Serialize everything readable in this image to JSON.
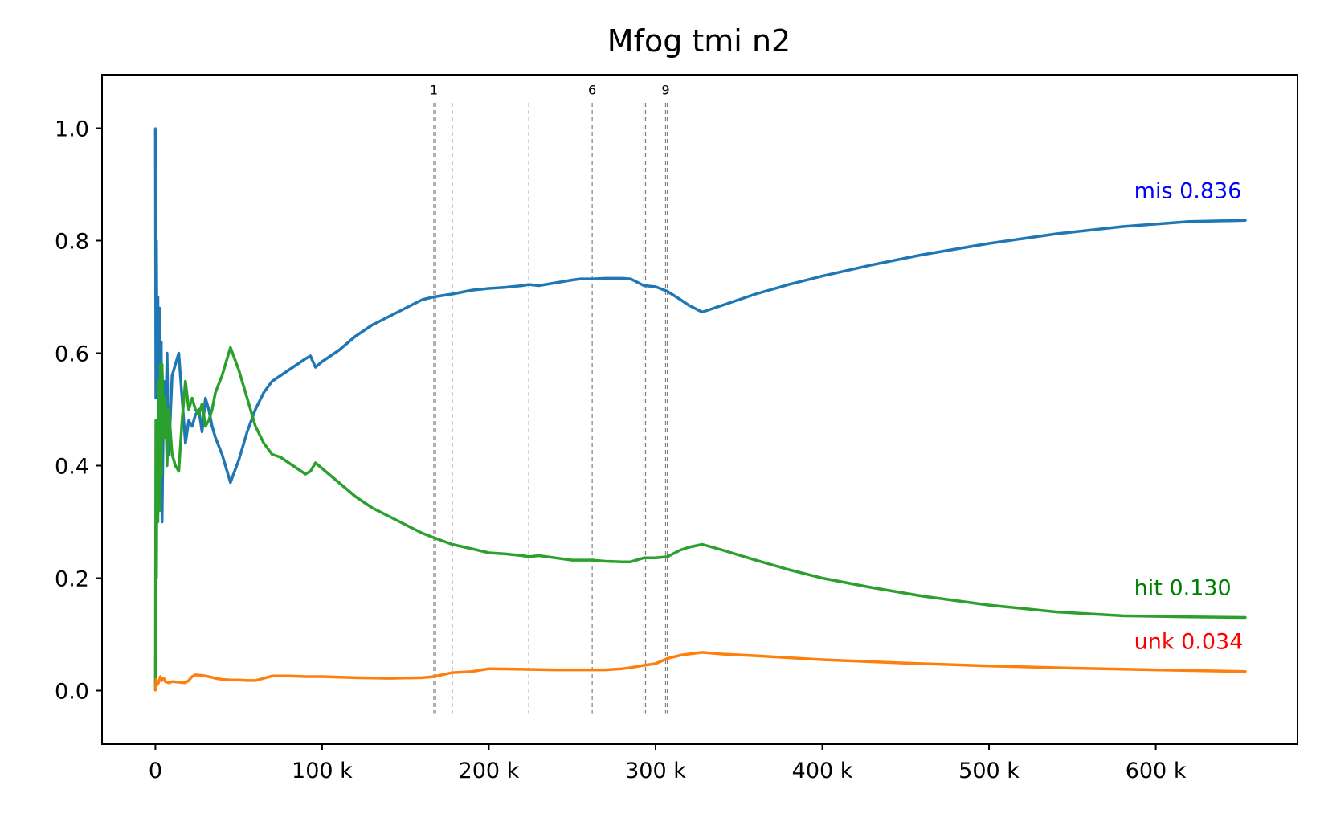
{
  "chart_data": {
    "type": "line",
    "title": "Mfog tmi n2",
    "xlabel": "",
    "ylabel": "",
    "xlim": [
      -32000,
      685000
    ],
    "ylim": [
      -0.095,
      1.095
    ],
    "xticks": [
      {
        "value": 0,
        "label": "0"
      },
      {
        "value": 100000,
        "label": "100 k"
      },
      {
        "value": 200000,
        "label": "200 k"
      },
      {
        "value": 300000,
        "label": "300 k"
      },
      {
        "value": 400000,
        "label": "400 k"
      },
      {
        "value": 500000,
        "label": "500 k"
      },
      {
        "value": 600000,
        "label": "600 k"
      }
    ],
    "yticks": [
      {
        "value": 0.0,
        "label": "0.0"
      },
      {
        "value": 0.2,
        "label": "0.2"
      },
      {
        "value": 0.4,
        "label": "0.4"
      },
      {
        "value": 0.6,
        "label": "0.6"
      },
      {
        "value": 0.8,
        "label": "0.8"
      },
      {
        "value": 1.0,
        "label": "1.0"
      }
    ],
    "vlines": [
      {
        "x": 167000,
        "label": "1"
      },
      {
        "x": 168000,
        "label": ""
      },
      {
        "x": 178000,
        "label": ""
      },
      {
        "x": 224000,
        "label": ""
      },
      {
        "x": 262000,
        "label": "6"
      },
      {
        "x": 293000,
        "label": ""
      },
      {
        "x": 294000,
        "label": ""
      },
      {
        "x": 306000,
        "label": "9"
      },
      {
        "x": 307000,
        "label": ""
      }
    ],
    "series": [
      {
        "name": "mis",
        "color": "#1f77b4",
        "end_label": "mis 0.836",
        "end_label_color": "#0000ff",
        "x": [
          0,
          300,
          600,
          1000,
          1500,
          2000,
          2500,
          3000,
          3500,
          4000,
          5000,
          6000,
          7000,
          8000,
          10000,
          12000,
          14000,
          16000,
          18000,
          20000,
          22000,
          24000,
          26000,
          28000,
          30000,
          32000,
          34000,
          36000,
          40000,
          45000,
          50000,
          55000,
          60000,
          65000,
          70000,
          75000,
          80000,
          85000,
          90000,
          93000,
          96000,
          100000,
          110000,
          120000,
          130000,
          140000,
          150000,
          160000,
          167000,
          178000,
          190000,
          200000,
          210000,
          220000,
          224000,
          230000,
          240000,
          250000,
          255000,
          262000,
          270000,
          280000,
          285000,
          293000,
          300000,
          307000,
          315000,
          320000,
          328000,
          340000,
          360000,
          380000,
          400000,
          430000,
          460000,
          500000,
          540000,
          580000,
          620000,
          654000
        ],
        "y": [
          1.0,
          0.52,
          0.8,
          0.55,
          0.7,
          0.45,
          0.68,
          0.4,
          0.62,
          0.3,
          0.55,
          0.45,
          0.6,
          0.42,
          0.56,
          0.58,
          0.6,
          0.52,
          0.44,
          0.48,
          0.47,
          0.49,
          0.5,
          0.46,
          0.52,
          0.5,
          0.47,
          0.45,
          0.42,
          0.37,
          0.41,
          0.46,
          0.5,
          0.53,
          0.55,
          0.56,
          0.57,
          0.58,
          0.59,
          0.595,
          0.575,
          0.585,
          0.605,
          0.63,
          0.65,
          0.665,
          0.68,
          0.695,
          0.7,
          0.705,
          0.712,
          0.715,
          0.717,
          0.72,
          0.722,
          0.72,
          0.725,
          0.73,
          0.732,
          0.732,
          0.733,
          0.733,
          0.732,
          0.72,
          0.718,
          0.71,
          0.695,
          0.685,
          0.673,
          0.685,
          0.705,
          0.722,
          0.737,
          0.757,
          0.775,
          0.795,
          0.812,
          0.825,
          0.834,
          0.836
        ]
      },
      {
        "name": "hit",
        "color": "#2ca02c",
        "end_label": "hit 0.130",
        "end_label_color": "#008000",
        "x": [
          0,
          300,
          600,
          1000,
          1500,
          2000,
          2500,
          3000,
          3500,
          4000,
          5000,
          6000,
          7000,
          8000,
          10000,
          12000,
          14000,
          16000,
          18000,
          20000,
          22000,
          24000,
          26000,
          28000,
          30000,
          32000,
          34000,
          36000,
          40000,
          45000,
          50000,
          55000,
          60000,
          65000,
          70000,
          75000,
          80000,
          85000,
          90000,
          93000,
          96000,
          100000,
          110000,
          120000,
          130000,
          140000,
          150000,
          160000,
          167000,
          178000,
          190000,
          200000,
          210000,
          220000,
          224000,
          230000,
          240000,
          250000,
          255000,
          262000,
          270000,
          280000,
          285000,
          293000,
          300000,
          307000,
          315000,
          320000,
          328000,
          340000,
          360000,
          380000,
          400000,
          430000,
          460000,
          500000,
          540000,
          580000,
          620000,
          654000
        ],
        "y": [
          0.0,
          0.48,
          0.2,
          0.45,
          0.3,
          0.55,
          0.32,
          0.58,
          0.38,
          0.58,
          0.45,
          0.52,
          0.4,
          0.5,
          0.42,
          0.4,
          0.39,
          0.48,
          0.55,
          0.5,
          0.52,
          0.5,
          0.49,
          0.51,
          0.47,
          0.48,
          0.5,
          0.53,
          0.56,
          0.61,
          0.57,
          0.52,
          0.47,
          0.44,
          0.42,
          0.415,
          0.405,
          0.395,
          0.385,
          0.39,
          0.405,
          0.395,
          0.37,
          0.345,
          0.325,
          0.31,
          0.295,
          0.28,
          0.272,
          0.26,
          0.252,
          0.245,
          0.243,
          0.24,
          0.238,
          0.24,
          0.236,
          0.232,
          0.232,
          0.232,
          0.23,
          0.229,
          0.229,
          0.236,
          0.236,
          0.238,
          0.25,
          0.255,
          0.26,
          0.25,
          0.232,
          0.215,
          0.2,
          0.183,
          0.168,
          0.152,
          0.14,
          0.133,
          0.131,
          0.13
        ]
      },
      {
        "name": "unk",
        "color": "#ff7f0e",
        "end_label": "unk 0.034",
        "end_label_color": "#ff0000",
        "x": [
          0,
          500,
          1000,
          2000,
          3000,
          4000,
          5000,
          6000,
          8000,
          10000,
          14000,
          18000,
          20000,
          22000,
          24000,
          28000,
          32000,
          36000,
          40000,
          45000,
          50000,
          55000,
          60000,
          65000,
          70000,
          80000,
          90000,
          100000,
          120000,
          140000,
          160000,
          167000,
          178000,
          190000,
          200000,
          220000,
          240000,
          260000,
          270000,
          280000,
          285000,
          293000,
          300000,
          307000,
          315000,
          320000,
          328000,
          340000,
          360000,
          400000,
          450000,
          500000,
          550000,
          600000,
          654000
        ],
        "y": [
          0.0,
          0.02,
          0.01,
          0.015,
          0.025,
          0.018,
          0.022,
          0.016,
          0.014,
          0.016,
          0.015,
          0.014,
          0.018,
          0.025,
          0.028,
          0.027,
          0.025,
          0.022,
          0.02,
          0.019,
          0.019,
          0.018,
          0.018,
          0.022,
          0.026,
          0.026,
          0.025,
          0.025,
          0.023,
          0.022,
          0.023,
          0.025,
          0.032,
          0.034,
          0.039,
          0.038,
          0.037,
          0.037,
          0.037,
          0.039,
          0.041,
          0.045,
          0.048,
          0.057,
          0.063,
          0.065,
          0.068,
          0.065,
          0.062,
          0.055,
          0.049,
          0.044,
          0.04,
          0.037,
          0.034
        ]
      }
    ]
  }
}
